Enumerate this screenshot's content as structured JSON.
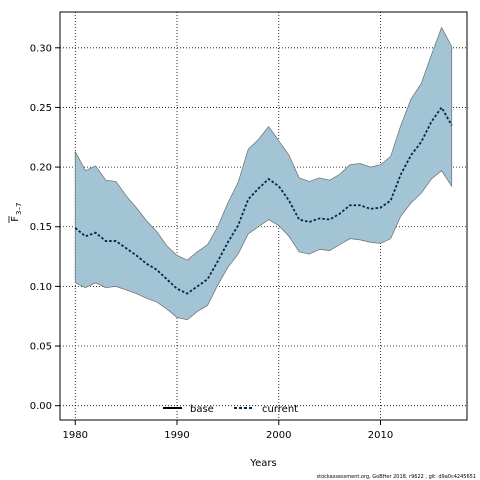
{
  "chart_data": {
    "type": "area",
    "xlabel": "Years",
    "ylabel_main": "F",
    "ylabel_sub": "3–7",
    "xlim": [
      1978.5,
      2018.5
    ],
    "ylim": [
      -0.012,
      0.33
    ],
    "x_ticks": [
      1980,
      1990,
      2000,
      2010
    ],
    "y_ticks": [
      0.0,
      0.05,
      0.1,
      0.15,
      0.2,
      0.25,
      0.3
    ],
    "y_tick_labels": [
      "0.00",
      "0.05",
      "0.10",
      "0.15",
      "0.20",
      "0.25",
      "0.30"
    ],
    "grid": true,
    "legend_position": "bottom-center",
    "years": [
      1980,
      1981,
      1982,
      1983,
      1984,
      1985,
      1986,
      1987,
      1988,
      1989,
      1990,
      1991,
      1992,
      1993,
      1994,
      1995,
      1996,
      1997,
      1998,
      1999,
      2000,
      2001,
      2002,
      2003,
      2004,
      2005,
      2006,
      2007,
      2008,
      2009,
      2010,
      2011,
      2012,
      2013,
      2014,
      2015,
      2016,
      2017
    ],
    "band_upper": [
      0.213,
      0.197,
      0.201,
      0.189,
      0.188,
      0.176,
      0.166,
      0.155,
      0.146,
      0.134,
      0.126,
      0.122,
      0.129,
      0.135,
      0.15,
      0.17,
      0.187,
      0.215,
      0.223,
      0.234,
      0.222,
      0.21,
      0.191,
      0.188,
      0.191,
      0.189,
      0.194,
      0.202,
      0.203,
      0.2,
      0.202,
      0.209,
      0.235,
      0.257,
      0.27,
      0.294,
      0.317,
      0.301
    ],
    "band_lower": [
      0.103,
      0.099,
      0.103,
      0.099,
      0.1,
      0.097,
      0.094,
      0.09,
      0.087,
      0.081,
      0.074,
      0.072,
      0.079,
      0.084,
      0.101,
      0.116,
      0.127,
      0.144,
      0.15,
      0.156,
      0.151,
      0.142,
      0.129,
      0.127,
      0.131,
      0.13,
      0.135,
      0.14,
      0.139,
      0.137,
      0.136,
      0.14,
      0.159,
      0.17,
      0.178,
      0.19,
      0.197,
      0.184
    ],
    "series": [
      {
        "name": "base",
        "values": []
      },
      {
        "name": "current",
        "values": [
          0.149,
          0.142,
          0.145,
          0.138,
          0.138,
          0.132,
          0.126,
          0.119,
          0.114,
          0.106,
          0.098,
          0.094,
          0.1,
          0.106,
          0.121,
          0.137,
          0.151,
          0.173,
          0.182,
          0.19,
          0.184,
          0.172,
          0.156,
          0.154,
          0.157,
          0.156,
          0.161,
          0.168,
          0.168,
          0.165,
          0.166,
          0.172,
          0.194,
          0.21,
          0.221,
          0.238,
          0.25,
          0.235
        ]
      }
    ],
    "colors": {
      "band_fill": "#a3c4d5",
      "band_edge": "#6b6b6b",
      "current_line": "#00264d",
      "base_line": "#000000",
      "grid": "#000000"
    },
    "footer": "stockassessment.org, GoBHer 2018, r9622 , git: d9a0c4245651"
  }
}
